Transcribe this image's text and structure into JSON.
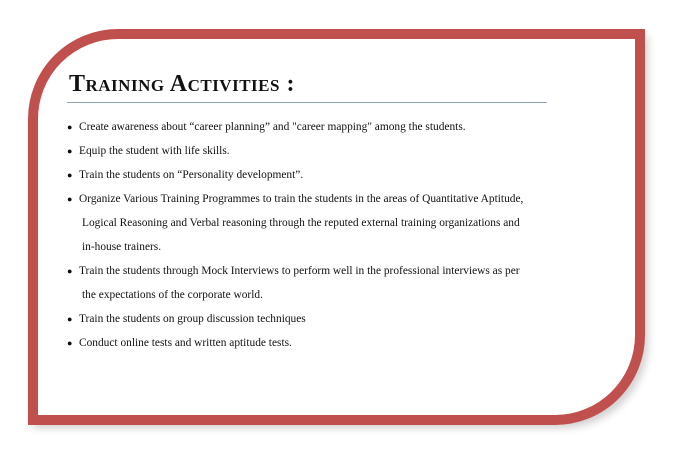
{
  "heading": "Training Activities :",
  "items": [
    {
      "lines": [
        "Create awareness about “career planning” and \"career mapping\" among the students."
      ]
    },
    {
      "lines": [
        "Equip the student with life skills."
      ]
    },
    {
      "lines": [
        "Train the students on “Personality development”."
      ]
    },
    {
      "lines": [
        "Organize Various Training Programmes to train the students in the areas of Quantitative Aptitude,",
        "Logical Reasoning and Verbal reasoning through the reputed external training organizations and",
        "in-house trainers."
      ]
    },
    {
      "lines": [
        "Train the students through Mock Interviews to perform well in the professional interviews as per",
        "the expectations of the corporate world."
      ]
    },
    {
      "lines": [
        "Train the students on group discussion techniques"
      ]
    },
    {
      "lines": [
        "Conduct online tests and written aptitude tests."
      ]
    }
  ],
  "colors": {
    "frame": "#c0504d",
    "rule": "#8ea3b8",
    "text": "#111111"
  }
}
